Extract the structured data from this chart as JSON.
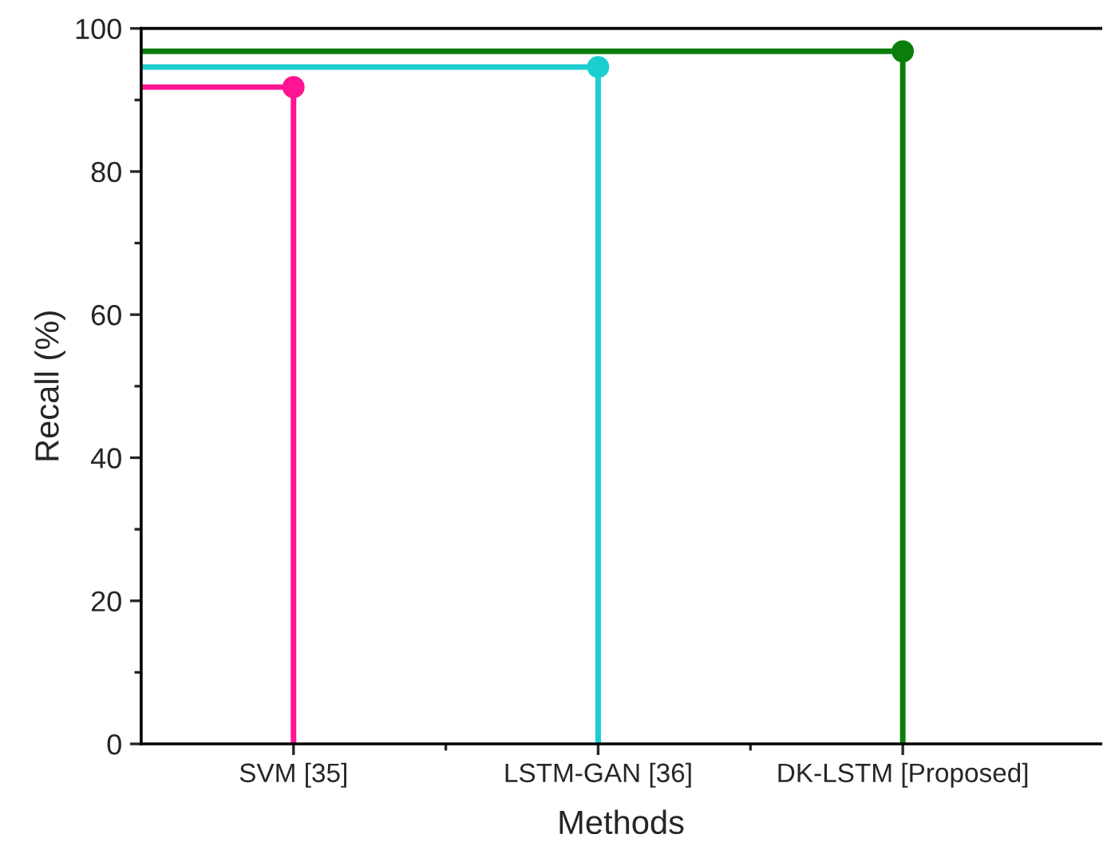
{
  "chart_data": {
    "type": "lollipop",
    "xlabel": "Methods",
    "ylabel": "Recall (%)",
    "categories": [
      "SVM [35]",
      "LSTM-GAN [36]",
      "DK-LSTM [Proposed]"
    ],
    "values": [
      91.8,
      94.6,
      96.8
    ],
    "colors": [
      "#ff1493",
      "#1ccfcf",
      "#0a7d0a"
    ],
    "ylim": [
      0,
      100
    ],
    "yticks": [
      0,
      20,
      40,
      60,
      80,
      100
    ],
    "ref_lines": [
      {
        "axis": "y",
        "value": 91.8,
        "color": "#ff1493"
      },
      {
        "axis": "y",
        "value": 94.6,
        "color": "#1ccfcf"
      },
      {
        "axis": "y",
        "value": 96.8,
        "color": "#0a7d0a"
      }
    ],
    "marker": "circle",
    "grid": false,
    "legend": false
  }
}
